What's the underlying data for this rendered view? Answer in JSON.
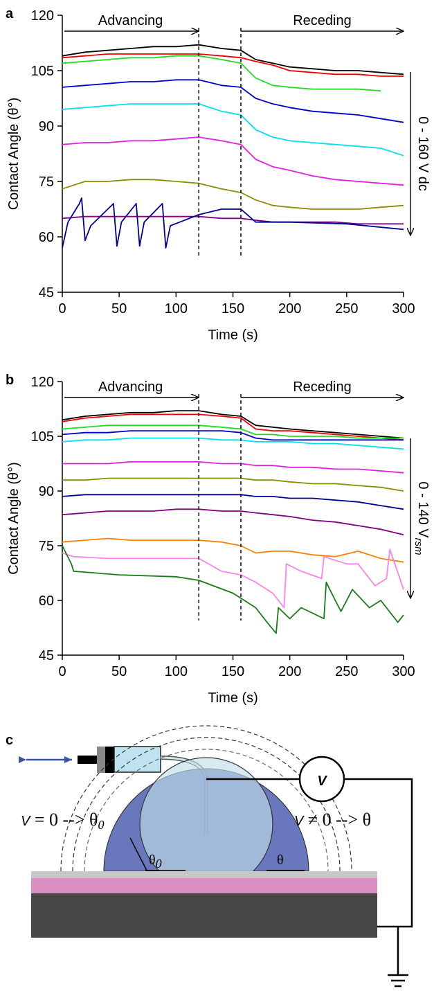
{
  "chart_data": [
    {
      "type": "line",
      "panel": "a",
      "xlabel": "Time (s)",
      "ylabel": "Contact Angle (θ°)",
      "xlim": [
        0,
        300
      ],
      "xticks": [
        0,
        50,
        100,
        150,
        200,
        250,
        300
      ],
      "ylim": [
        45,
        120
      ],
      "yticks": [
        45,
        60,
        75,
        90,
        105,
        120
      ],
      "phase_bounds": [
        120,
        157
      ],
      "phase_labels": [
        "Advancing",
        "Receding"
      ],
      "voltage_label": "0 - 160 V dc",
      "voltage_subscript": null,
      "x": [
        0,
        20,
        40,
        60,
        80,
        100,
        120,
        140,
        157,
        170,
        185,
        200,
        220,
        240,
        260,
        280,
        300
      ],
      "series": [
        {
          "color": "#000000",
          "values": [
            109,
            110,
            110.5,
            111,
            111.5,
            111.5,
            112,
            111,
            110.5,
            108,
            107,
            106,
            105.5,
            105,
            105,
            104.5,
            104
          ]
        },
        {
          "color": "#ee0000",
          "values": [
            108.5,
            109,
            109.5,
            109.5,
            109.5,
            109.5,
            109.5,
            109,
            108.5,
            107.5,
            106.5,
            105,
            104.5,
            104,
            104,
            103.5,
            103.5
          ]
        },
        {
          "color": "#22dd22",
          "values": [
            107,
            107.5,
            108,
            108.5,
            108.5,
            109,
            109,
            108,
            107,
            103,
            101,
            100.5,
            100,
            100,
            100,
            99.5,
            null
          ]
        },
        {
          "color": "#0000cc",
          "values": [
            100.5,
            101,
            101.5,
            102,
            102,
            102.5,
            102.5,
            101,
            100.5,
            97.5,
            96,
            95,
            94,
            93.5,
            93,
            92,
            91
          ]
        },
        {
          "color": "#00e0ee",
          "values": [
            94.5,
            95,
            95.5,
            96,
            96,
            96,
            96,
            94,
            93,
            89,
            87,
            86,
            85.5,
            85,
            84.5,
            84,
            82
          ]
        },
        {
          "color": "#e020e0",
          "values": [
            85,
            85.5,
            85.5,
            86,
            86,
            86.5,
            87,
            86,
            85,
            81,
            79,
            78,
            76.5,
            75.5,
            75,
            74.5,
            74
          ]
        },
        {
          "color": "#8c8c00",
          "values": [
            73,
            75,
            75,
            75.5,
            75.5,
            75,
            74.5,
            73,
            72,
            70,
            68.5,
            68,
            67.5,
            67.5,
            67.5,
            68,
            68.5
          ]
        },
        {
          "color": "#800080",
          "values": [
            65,
            65.5,
            65.5,
            65.5,
            65.5,
            65.5,
            65.5,
            65,
            65,
            64.5,
            64,
            64,
            64,
            64,
            63.5,
            63.5,
            63.5
          ]
        },
        {
          "color": "#000090",
          "x": [
            0,
            5,
            15,
            17,
            20,
            25,
            45,
            48,
            52,
            65,
            68,
            72,
            88,
            91,
            95,
            120,
            140,
            157,
            170,
            200,
            250,
            300
          ],
          "values": [
            57,
            64,
            69,
            70.5,
            59,
            63,
            69,
            57.5,
            64,
            69,
            57.5,
            64,
            69,
            57,
            63,
            66,
            67.5,
            67.5,
            64,
            64,
            63.5,
            62
          ]
        }
      ]
    },
    {
      "type": "line",
      "panel": "b",
      "xlabel": "Time (s)",
      "ylabel": "Contact Angle (θ°)",
      "xlim": [
        0,
        300
      ],
      "xticks": [
        0,
        50,
        100,
        150,
        200,
        250,
        300
      ],
      "ylim": [
        45,
        120
      ],
      "yticks": [
        45,
        60,
        75,
        90,
        105,
        120
      ],
      "phase_bounds": [
        120,
        157
      ],
      "phase_labels": [
        "Advancing",
        "Receding"
      ],
      "voltage_label": "0 - 140 V",
      "voltage_subscript": "rsm",
      "x": [
        0,
        20,
        40,
        60,
        80,
        100,
        120,
        140,
        157,
        170,
        185,
        200,
        220,
        240,
        260,
        280,
        300
      ],
      "series": [
        {
          "color": "#000000",
          "values": [
            109.5,
            110.5,
            111,
            111.5,
            111.5,
            112,
            112,
            111,
            110.5,
            108,
            107.5,
            107,
            106.5,
            106,
            105.5,
            105,
            104.5
          ]
        },
        {
          "color": "#ee0000",
          "values": [
            109,
            110,
            110.5,
            111,
            111,
            111,
            111,
            110.5,
            110,
            107,
            106.5,
            106.5,
            106,
            105.5,
            105,
            104.5,
            104
          ]
        },
        {
          "color": "#22dd22",
          "values": [
            107,
            107.5,
            108,
            108,
            108,
            108,
            108,
            107.5,
            107,
            105.5,
            105.5,
            105,
            105,
            105,
            104.5,
            104.5,
            104.5
          ]
        },
        {
          "color": "#0000cc",
          "values": [
            105.5,
            106,
            106,
            106.5,
            106.5,
            106.5,
            106.5,
            106.5,
            106,
            104.5,
            104,
            104,
            104,
            104,
            104,
            104,
            104
          ]
        },
        {
          "color": "#00e0ee",
          "values": [
            103.5,
            104,
            104,
            104.5,
            104.5,
            104.5,
            104.5,
            104,
            104,
            103.5,
            103.5,
            103.5,
            103,
            103,
            102.5,
            102,
            101.5
          ]
        },
        {
          "color": "#e020e0",
          "values": [
            97.5,
            97.5,
            97.5,
            98,
            98,
            98,
            98,
            97.5,
            97.5,
            97,
            97,
            96.5,
            96.5,
            96,
            96,
            95.5,
            95
          ]
        },
        {
          "color": "#8c8c00",
          "values": [
            93,
            93,
            93.5,
            93.5,
            93.5,
            93.5,
            93.5,
            93.5,
            93.5,
            93,
            93,
            92.5,
            92,
            92,
            91.5,
            91,
            90
          ]
        },
        {
          "color": "#000090",
          "values": [
            88.5,
            89,
            89,
            89,
            89,
            89,
            89,
            89,
            89,
            88.5,
            88.5,
            88,
            88,
            87.5,
            87,
            86,
            85
          ]
        },
        {
          "color": "#800080",
          "values": [
            83.5,
            84,
            84.5,
            84.5,
            84.5,
            85,
            85,
            84.5,
            84.5,
            84,
            83.5,
            83,
            82,
            81.5,
            80.5,
            79.5,
            78
          ]
        },
        {
          "color": "#ff8000",
          "values": [
            76,
            76.5,
            77,
            76.5,
            76.5,
            76.5,
            76.5,
            76,
            75,
            73,
            73.5,
            73.5,
            72.5,
            72,
            73.5,
            71.5,
            70.5
          ]
        },
        {
          "color": "#ff80ee",
          "x": [
            0,
            10,
            40,
            80,
            120,
            140,
            157,
            170,
            185,
            195,
            197,
            210,
            228,
            230,
            250,
            260,
            275,
            285,
            288,
            300
          ],
          "values": [
            73,
            72,
            71.5,
            71.5,
            71.5,
            68,
            67,
            65,
            62,
            58,
            70,
            68,
            66,
            72,
            70,
            70,
            64,
            66,
            74,
            63
          ]
        },
        {
          "color": "#1a7a1a",
          "x": [
            0,
            8,
            10,
            50,
            100,
            120,
            150,
            170,
            180,
            188,
            190,
            200,
            210,
            230,
            232,
            240,
            245,
            255,
            270,
            280,
            295,
            300
          ],
          "values": [
            75,
            70,
            68,
            67,
            66.5,
            65.5,
            62,
            58,
            54,
            51,
            58,
            55,
            58,
            55,
            65,
            60,
            57,
            63,
            58,
            60,
            54,
            56
          ]
        }
      ]
    }
  ],
  "diagram": {
    "panel": "c",
    "voltmeter": "V",
    "left_label": [
      "V",
      " = 0 --> θ",
      "0"
    ],
    "right_label": [
      "V",
      " ≠ 0 --> θ"
    ],
    "angle_left": [
      "θ",
      "0"
    ],
    "angle_right": "θ"
  }
}
